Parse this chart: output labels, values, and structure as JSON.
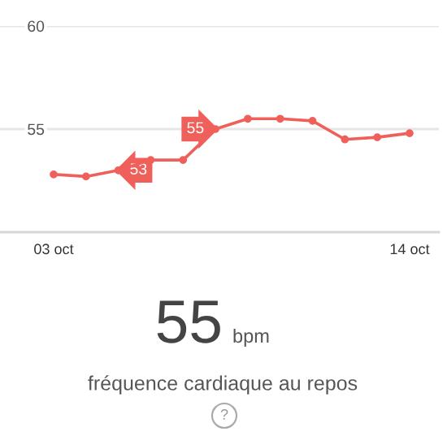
{
  "chart_data": {
    "type": "line",
    "categories": [
      "03 oct",
      null,
      null,
      null,
      null,
      null,
      null,
      null,
      null,
      null,
      null,
      "14 oct"
    ],
    "series": [
      {
        "color": "#f0605a",
        "values": [
          52.8,
          52.7,
          53,
          53.5,
          53.5,
          55,
          55.5,
          55.5,
          55.4,
          54.5,
          54.6,
          54.8
        ],
        "value_labels": [
          null,
          null,
          "53",
          null,
          null,
          "55",
          null,
          null,
          null,
          null,
          null,
          null
        ]
      }
    ],
    "ylim": [
      50,
      60
    ],
    "yticks": [
      55,
      60
    ],
    "grid": "y",
    "marker": "circle",
    "line_style": "solid",
    "annotations": [
      "55",
      "bpm",
      "fréquence cardiaque au repos",
      "?"
    ]
  }
}
